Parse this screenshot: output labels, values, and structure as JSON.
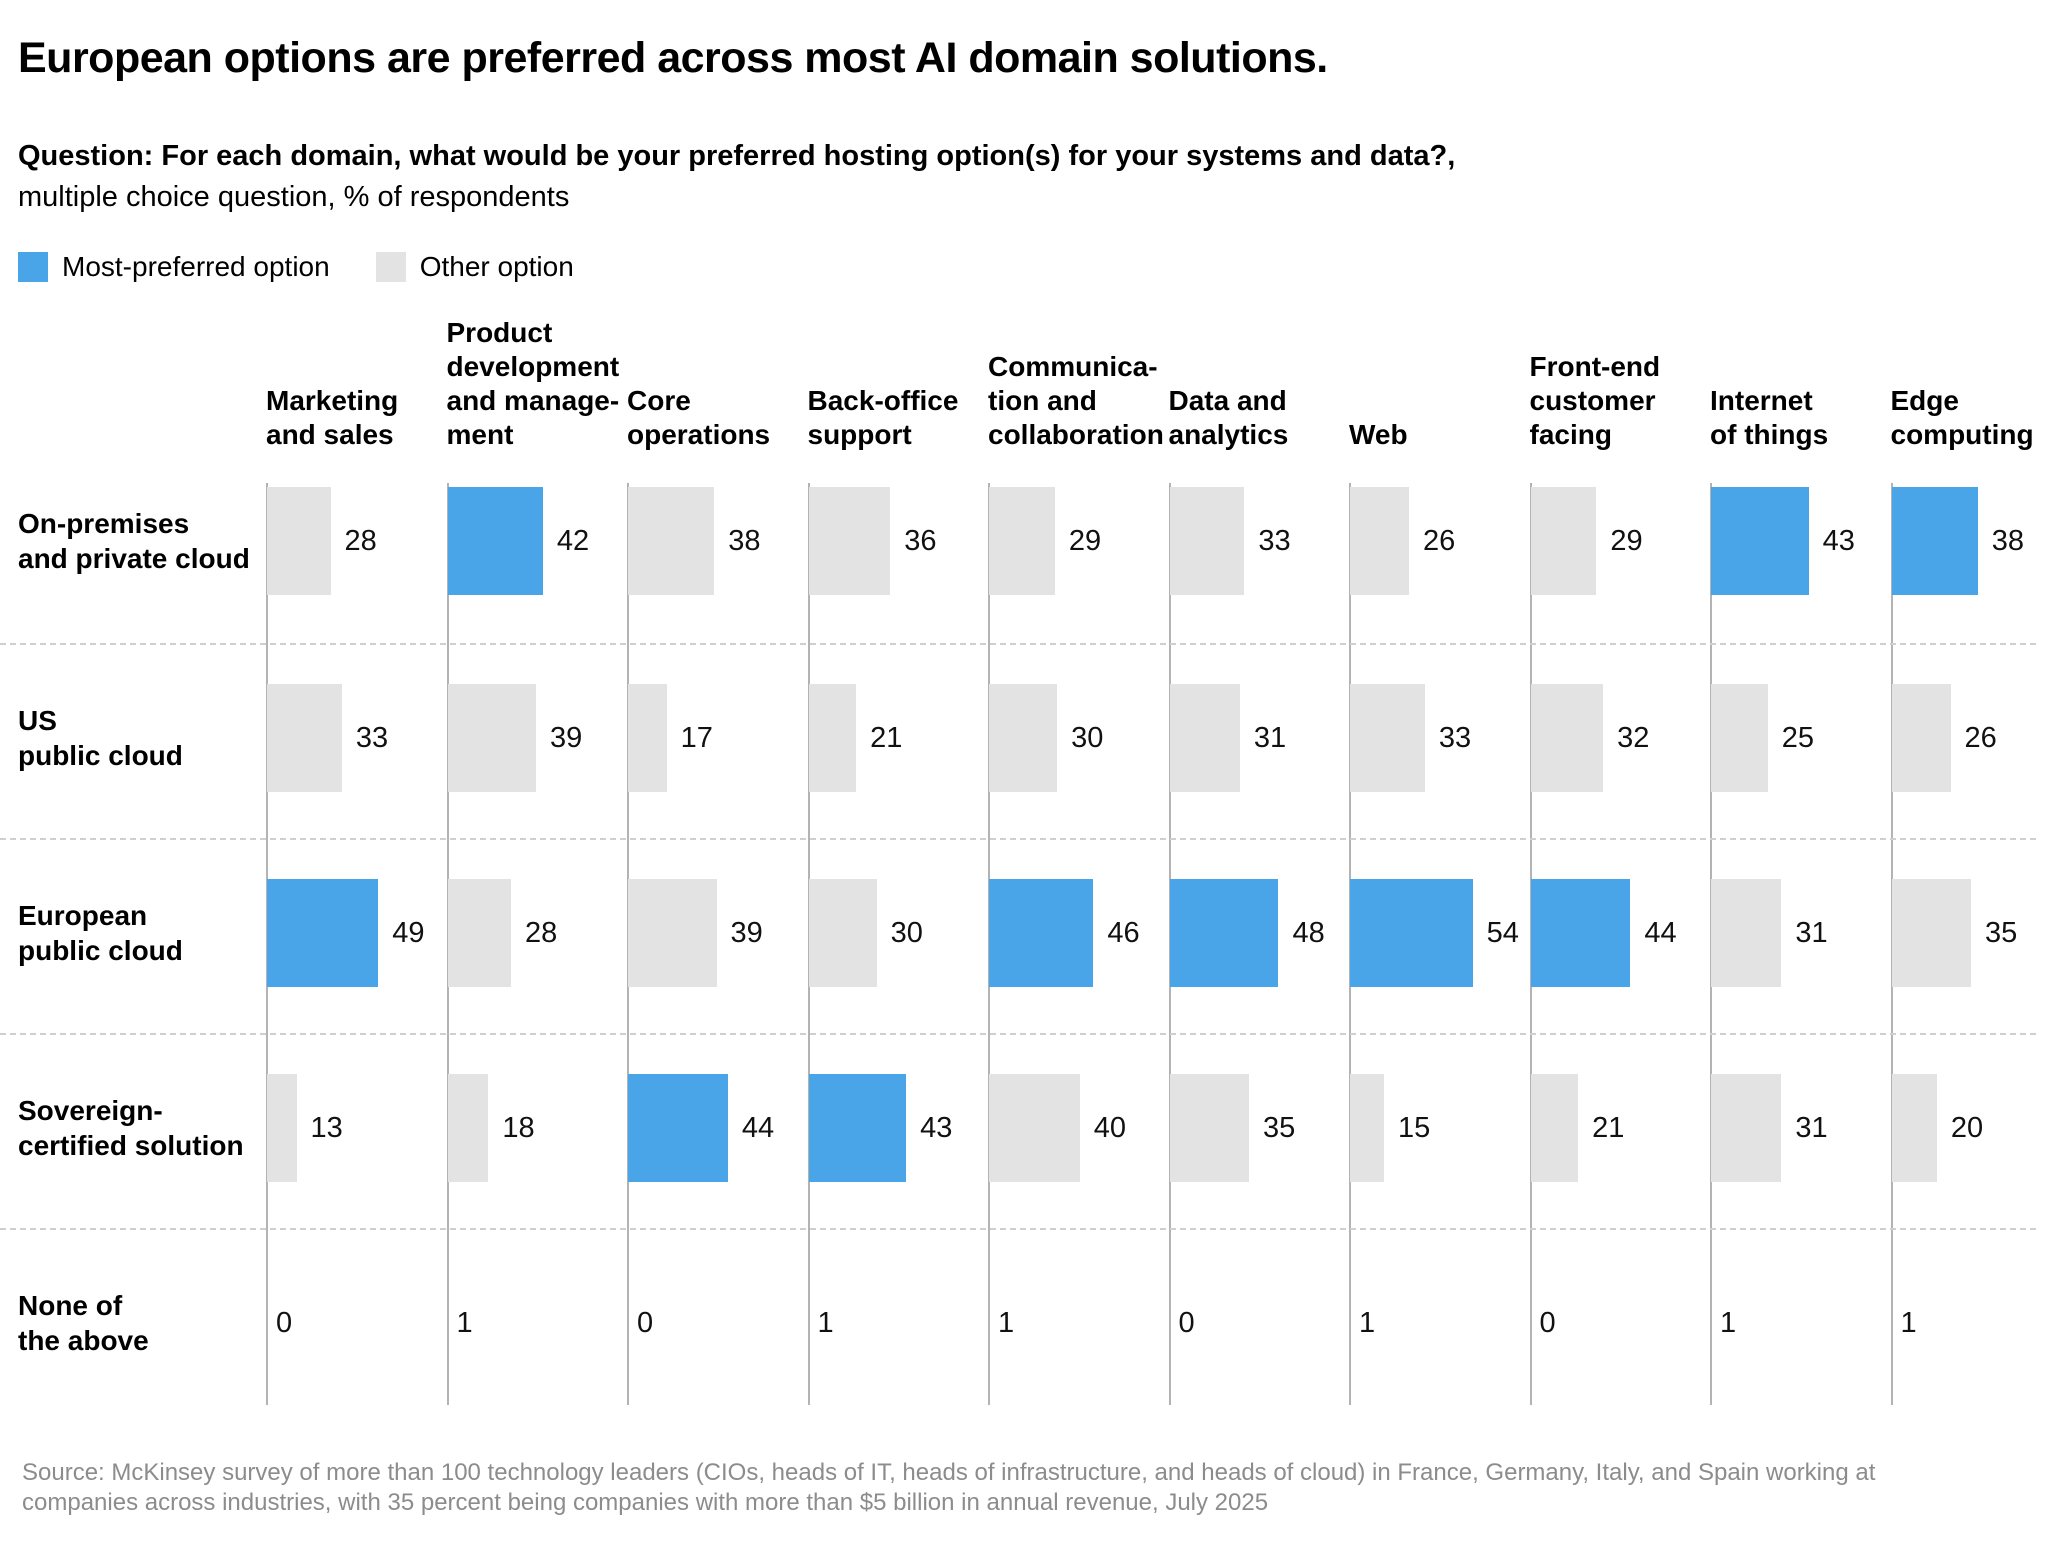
{
  "title": "European options are preferred across most AI domain solutions.",
  "question": {
    "bold": "Question: For each domain, what would be your preferred hosting option(s) for your systems and data?,",
    "sub": "multiple choice question, % of respondents"
  },
  "legend": {
    "most_preferred": "Most-preferred option",
    "other": "Other option"
  },
  "colors": {
    "preferred": "#4aa4e8",
    "other": "#e3e3e3"
  },
  "chart_data": {
    "type": "bar",
    "orientation": "horizontal",
    "value_unit": "% of respondents",
    "legend": [
      "Most-preferred option",
      "Other option"
    ],
    "columns": [
      "Marketing\nand sales",
      "Product\ndevelopment\nand manage-\nment",
      "Core\noperations",
      "Back-office\nsupport",
      "Communica-\ntion and\ncollaboration",
      "Data and\nanalytics",
      "Web",
      "Front-end\ncustomer\nfacing",
      "Internet\nof things",
      "Edge\ncomputing"
    ],
    "rows": [
      {
        "label": "On-premises\nand private cloud",
        "values": [
          28,
          42,
          38,
          36,
          29,
          33,
          26,
          29,
          43,
          38
        ],
        "preferred": [
          false,
          true,
          false,
          false,
          false,
          false,
          false,
          false,
          true,
          true
        ],
        "show_bars": true
      },
      {
        "label": "US\npublic cloud",
        "values": [
          33,
          39,
          17,
          21,
          30,
          31,
          33,
          32,
          25,
          26
        ],
        "preferred": [
          false,
          false,
          false,
          false,
          false,
          false,
          false,
          false,
          false,
          false
        ],
        "show_bars": true
      },
      {
        "label": "European\npublic cloud",
        "values": [
          49,
          28,
          39,
          30,
          46,
          48,
          54,
          44,
          31,
          35
        ],
        "preferred": [
          true,
          false,
          false,
          false,
          true,
          true,
          true,
          true,
          false,
          false
        ],
        "show_bars": true
      },
      {
        "label": "Sovereign-\ncertified solution",
        "values": [
          13,
          18,
          44,
          43,
          40,
          35,
          15,
          21,
          31,
          20
        ],
        "preferred": [
          false,
          false,
          true,
          true,
          false,
          false,
          false,
          false,
          false,
          false
        ],
        "show_bars": true
      },
      {
        "label": "None of\nthe above",
        "values": [
          0,
          1,
          0,
          1,
          1,
          0,
          1,
          0,
          1,
          1
        ],
        "preferred": [
          false,
          false,
          false,
          false,
          false,
          false,
          false,
          false,
          false,
          false
        ],
        "show_bars": false
      }
    ]
  },
  "source": "Source: McKinsey survey of more than 100 technology leaders (CIOs, heads of IT, heads of infrastructure, and heads of cloud) in France, Germany, Italy, and Spain working at companies across industries, with 35 percent being companies with more than $5 billion in annual revenue, July 2025"
}
